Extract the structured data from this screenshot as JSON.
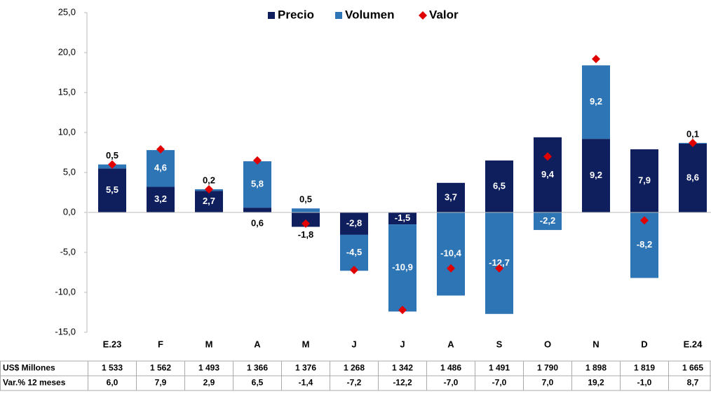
{
  "chart_data": {
    "type": "stacked-bar",
    "categories": [
      "E.23",
      "F",
      "M",
      "A",
      "M",
      "J",
      "J",
      "A",
      "S",
      "O",
      "N",
      "D",
      "E.24"
    ],
    "series": [
      {
        "name": "Precio",
        "color": "#0f1f5e",
        "kind": "bar",
        "values": [
          5.5,
          3.2,
          2.7,
          0.6,
          -1.8,
          -2.8,
          -1.5,
          3.7,
          6.5,
          9.4,
          9.2,
          7.9,
          8.6
        ],
        "value_labels": [
          "5,5",
          "3,2",
          "2,7",
          "0,6",
          "-1,8",
          "-2,8",
          "-1,5",
          "3,7",
          "6,5",
          "9,4",
          "9,2",
          "7,9",
          "8,6"
        ]
      },
      {
        "name": "Volumen",
        "color": "#2e75b6",
        "kind": "bar",
        "values": [
          0.5,
          4.6,
          0.2,
          5.8,
          0.5,
          -4.5,
          -10.9,
          -10.4,
          -12.7,
          -2.2,
          9.2,
          -8.2,
          0.1
        ],
        "value_labels": [
          "0,5",
          "4,6",
          "0,2",
          "5,8",
          "0,5",
          "-4,5",
          "-10,9",
          "-10,4",
          "-12,7",
          "-2,2",
          "9,2",
          "-8,2",
          "0,1"
        ]
      },
      {
        "name": "Valor",
        "color": "#e00000",
        "kind": "diamond",
        "values": [
          6.0,
          7.9,
          2.9,
          6.5,
          -1.4,
          -7.2,
          -12.2,
          -7.0,
          -7.0,
          7.0,
          19.2,
          -1.0,
          8.7
        ]
      }
    ],
    "ylim": [
      -15,
      25
    ],
    "yticks": [
      {
        "value": -15,
        "label": "-15,0"
      },
      {
        "value": -10,
        "label": "-10,0"
      },
      {
        "value": -5,
        "label": "-5,0"
      },
      {
        "value": 0,
        "label": "0,0"
      },
      {
        "value": 5,
        "label": "5,0"
      },
      {
        "value": 10,
        "label": "10,0"
      },
      {
        "value": 15,
        "label": "15,0"
      },
      {
        "value": 20,
        "label": "20,0"
      },
      {
        "value": 25,
        "label": "25,0"
      }
    ],
    "legend": "top"
  },
  "table": {
    "rows": [
      [
        "US$ Millones",
        "1 533",
        "1 562",
        "1 493",
        "1 366",
        "1 376",
        "1 268",
        "1 342",
        "1 486",
        "1 491",
        "1 790",
        "1 898",
        "1 819",
        "1 665"
      ],
      [
        "Var.% 12 meses",
        "6,0",
        "7,9",
        "2,9",
        "6,5",
        "-1,4",
        "-7,2",
        "-12,2",
        "-7,0",
        "-7,0",
        "7,0",
        "19,2",
        "-1,0",
        "8,7"
      ]
    ]
  }
}
